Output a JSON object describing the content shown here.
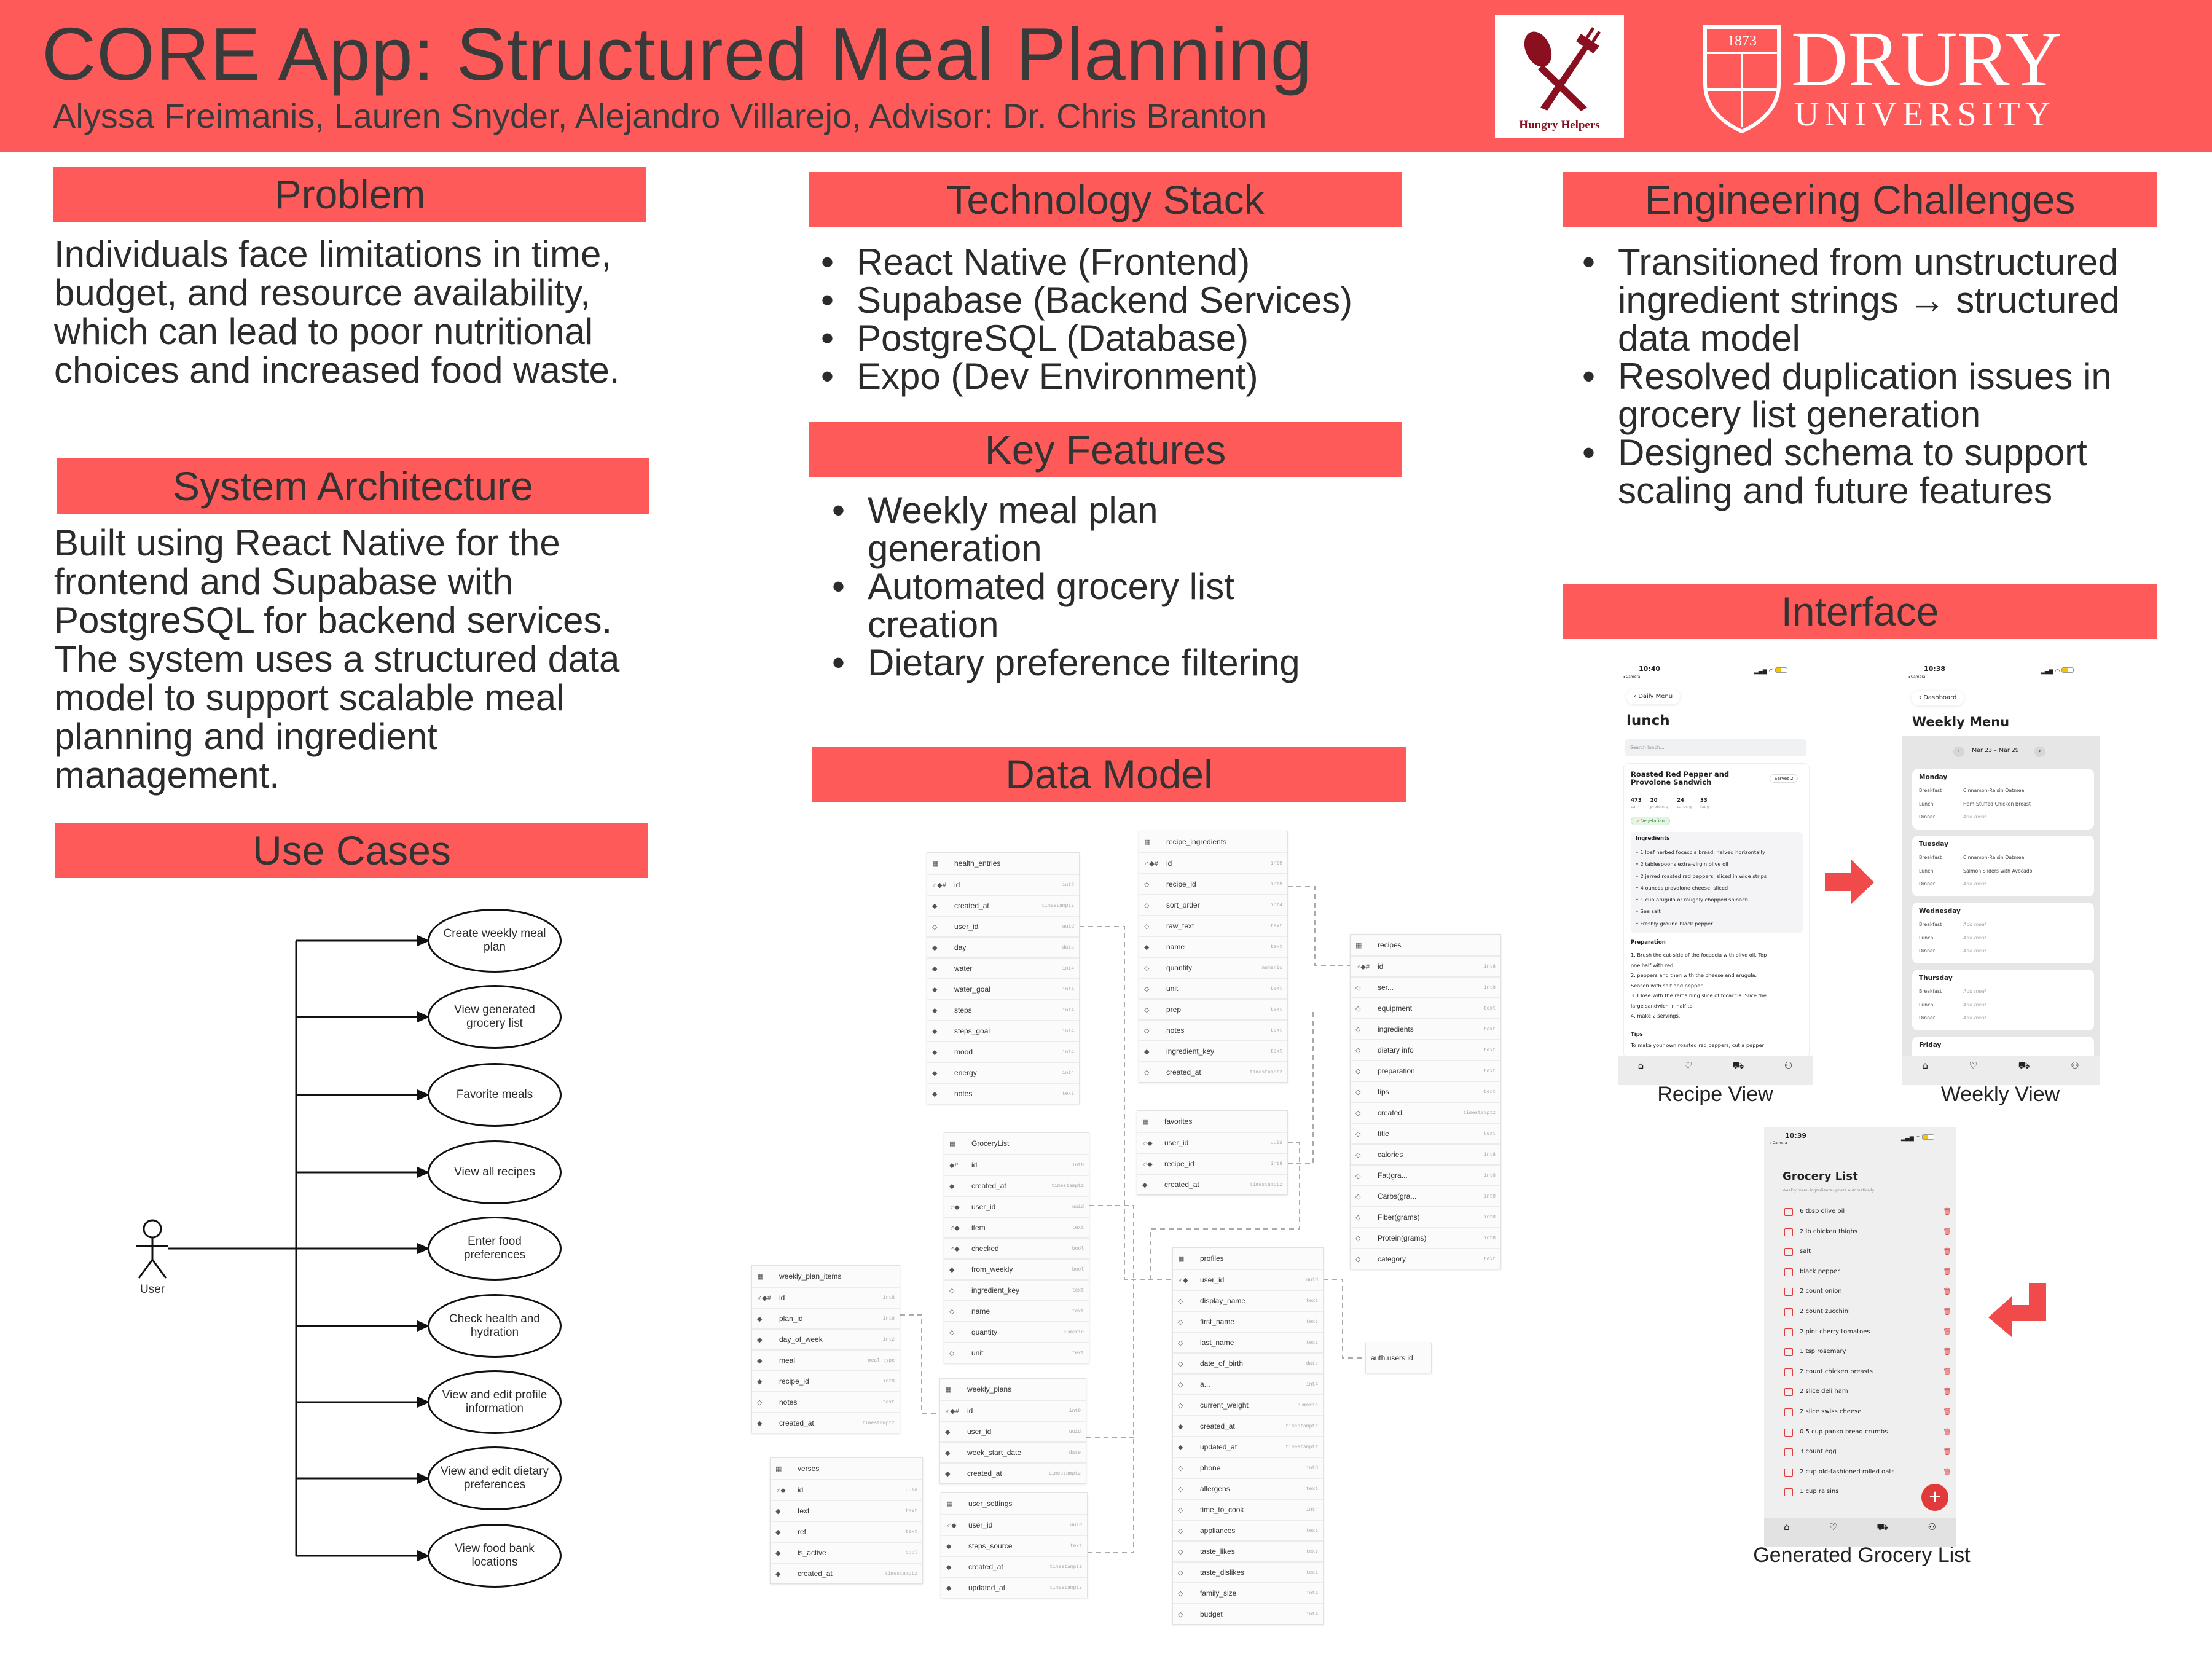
{
  "header": {
    "title": "CORE App: Structured Meal Planning",
    "authors": "Alyssa Freimanis, Lauren Snyder, Alejandro Villarejo, Advisor: Dr. Chris Branton",
    "logo_text": "Hungry Helpers",
    "university_name": "DRURY",
    "university_sub": "UNIVERSITY",
    "university_year": "1873",
    "brand_color": "#ff5a5a"
  },
  "problem": {
    "heading": "Problem",
    "body": "Individuals face limitations in time, budget, and resource availability, which can lead to poor nutritional choices and increased food waste."
  },
  "architecture": {
    "heading": "System Architecture",
    "body": "Built using React Native for the frontend and Supabase with PostgreSQL for backend services. The system uses a structured data model to support scalable meal planning and ingredient management."
  },
  "use_cases": {
    "heading": "Use Cases",
    "actor": "User",
    "cases": [
      "Create weekly meal plan",
      "View generated grocery list",
      "Favorite meals",
      "View all recipes",
      "Enter food preferences",
      "Check health and hydration",
      "View and edit profile information",
      "View and edit dietary preferences",
      "View food bank locations"
    ]
  },
  "tech_stack": {
    "heading": "Technology Stack",
    "items": [
      "React Native (Frontend)",
      "Supabase (Backend Services)",
      "PostgreSQL (Database)",
      "Expo (Dev Environment)"
    ]
  },
  "features": {
    "heading": "Key Features",
    "items": [
      "Weekly meal plan generation",
      "Automated grocery list creation",
      "Dietary preference filtering"
    ]
  },
  "challenges": {
    "heading": "Engineering Challenges",
    "items": [
      "Transitioned from unstructured ingredient strings → structured data model",
      "Resolved duplication issues in grocery list generation",
      "Designed schema to support scaling and future features"
    ]
  },
  "data_model": {
    "heading": "Data Model",
    "external_ref": "auth.users.id",
    "tables": [
      {
        "name": "health_entries",
        "fields": [
          [
            "id",
            "int8",
            "pk"
          ],
          [
            "created_at",
            "timestamptz",
            "req"
          ],
          [
            "user_id",
            "uuid",
            "opt"
          ],
          [
            "day",
            "date",
            "req"
          ],
          [
            "water",
            "int4",
            "req"
          ],
          [
            "water_goal",
            "int4",
            "req"
          ],
          [
            "steps",
            "int4",
            "req"
          ],
          [
            "steps_goal",
            "int4",
            "req"
          ],
          [
            "mood",
            "int4",
            "req"
          ],
          [
            "energy",
            "int4",
            "req"
          ],
          [
            "notes",
            "text",
            "req"
          ]
        ]
      },
      {
        "name": "recipe_ingredients",
        "fields": [
          [
            "id",
            "int8",
            "pk"
          ],
          [
            "recipe_id",
            "int8",
            "opt"
          ],
          [
            "sort_order",
            "int4",
            "opt"
          ],
          [
            "raw_text",
            "text",
            "opt"
          ],
          [
            "name",
            "text",
            "req"
          ],
          [
            "quantity",
            "numeric",
            "opt"
          ],
          [
            "unit",
            "text",
            "opt"
          ],
          [
            "prep",
            "text",
            "opt"
          ],
          [
            "notes",
            "text",
            "opt"
          ],
          [
            "ingredient_key",
            "text",
            "req"
          ],
          [
            "created_at",
            "timestamptz",
            "opt"
          ]
        ]
      },
      {
        "name": "recipes",
        "fields": [
          [
            "id",
            "int8",
            "pk"
          ],
          [
            "ser...",
            "int8",
            "opt"
          ],
          [
            "equipment",
            "text",
            "opt"
          ],
          [
            "ingredients",
            "text",
            "opt"
          ],
          [
            "dietary info",
            "text",
            "opt"
          ],
          [
            "preparation",
            "text",
            "opt"
          ],
          [
            "tips",
            "text",
            "opt"
          ],
          [
            "created",
            "timestamptz",
            "opt"
          ],
          [
            "title",
            "text",
            "opt"
          ],
          [
            "calories",
            "int8",
            "opt"
          ],
          [
            "Fat(gra...",
            "int8",
            "opt"
          ],
          [
            "Carbs(gra...",
            "int8",
            "opt"
          ],
          [
            "Fiber(grams)",
            "int8",
            "opt"
          ],
          [
            "Protein(grams)",
            "int8",
            "opt"
          ],
          [
            "category",
            "text",
            "opt"
          ]
        ]
      },
      {
        "name": "favorites",
        "fields": [
          [
            "user_id",
            "uuid",
            "pkfk"
          ],
          [
            "recipe_id",
            "int8",
            "pkfk"
          ],
          [
            "created_at",
            "timestamptz",
            "req"
          ]
        ]
      },
      {
        "name": "GroceryList",
        "fields": [
          [
            "id",
            "int8",
            "idhash"
          ],
          [
            "created_at",
            "timestamptz",
            "req"
          ],
          [
            "user_id",
            "uuid",
            "pkfk"
          ],
          [
            "item",
            "text",
            "pkfk"
          ],
          [
            "checked",
            "bool",
            "pkfk"
          ],
          [
            "from_weekly",
            "bool",
            "req"
          ],
          [
            "ingredient_key",
            "text",
            "opt"
          ],
          [
            "name",
            "text",
            "opt"
          ],
          [
            "quantity",
            "numeric",
            "opt"
          ],
          [
            "unit",
            "text",
            "opt"
          ]
        ]
      },
      {
        "name": "weekly_plan_items",
        "fields": [
          [
            "id",
            "int8",
            "pk"
          ],
          [
            "plan_id",
            "int8",
            "req"
          ],
          [
            "day_of_week",
            "int2",
            "req"
          ],
          [
            "meal",
            "meal_type",
            "req"
          ],
          [
            "recipe_id",
            "int8",
            "req"
          ],
          [
            "notes",
            "text",
            "opt"
          ],
          [
            "created_at",
            "timestamptz",
            "req"
          ]
        ]
      },
      {
        "name": "weekly_plans",
        "fields": [
          [
            "id",
            "int8",
            "pk"
          ],
          [
            "user_id",
            "uuid",
            "req"
          ],
          [
            "week_start_date",
            "date",
            "req"
          ],
          [
            "created_at",
            "timestamptz",
            "req"
          ]
        ]
      },
      {
        "name": "user_settings",
        "fields": [
          [
            "user_id",
            "uuid",
            "pkfk"
          ],
          [
            "steps_source",
            "text",
            "req"
          ],
          [
            "created_at",
            "timestamptz",
            "req"
          ],
          [
            "updated_at",
            "timestamptz",
            "req"
          ]
        ]
      },
      {
        "name": "verses",
        "fields": [
          [
            "id",
            "uuid",
            "pkfk"
          ],
          [
            "text",
            "text",
            "req"
          ],
          [
            "ref",
            "text",
            "req"
          ],
          [
            "is_active",
            "bool",
            "req"
          ],
          [
            "created_at",
            "timestamptz",
            "req"
          ]
        ]
      },
      {
        "name": "profiles",
        "fields": [
          [
            "user_id",
            "uuid",
            "pkfk"
          ],
          [
            "display_name",
            "text",
            "opt"
          ],
          [
            "first_name",
            "text",
            "opt"
          ],
          [
            "last_name",
            "text",
            "opt"
          ],
          [
            "date_of_birth",
            "date",
            "opt"
          ],
          [
            "a...",
            "int4",
            "opt"
          ],
          [
            "current_weight",
            "numeric",
            "opt"
          ],
          [
            "created_at",
            "timestamptz",
            "req"
          ],
          [
            "updated_at",
            "timestamptz",
            "req"
          ],
          [
            "phone",
            "int8",
            "opt"
          ],
          [
            "allergens",
            "text",
            "opt"
          ],
          [
            "time_to_cook",
            "int4",
            "opt"
          ],
          [
            "appliances",
            "text",
            "opt"
          ],
          [
            "taste_likes",
            "text",
            "opt"
          ],
          [
            "taste_dislikes",
            "text",
            "opt"
          ],
          [
            "family_size",
            "int4",
            "opt"
          ],
          [
            "budget",
            "int4",
            "opt"
          ]
        ]
      }
    ]
  },
  "interface": {
    "heading": "Interface",
    "recipe_view": {
      "caption": "Recipe View",
      "time": "10:40",
      "carrier_back": "◂ Camera",
      "back_label": "Daily Menu",
      "title": "lunch",
      "search_placeholder": "Search lunch...",
      "recipe_title_1": "Roasted Red Pepper and",
      "recipe_title_2": "Provolone Sandwich",
      "serves": "Serves 2",
      "macros": [
        [
          "473",
          "cal"
        ],
        [
          "20",
          "protein g"
        ],
        [
          "24",
          "carbs g"
        ],
        [
          "33",
          "fat g"
        ]
      ],
      "tag": "Vegetarian",
      "ingredients_heading": "Ingredients",
      "ingredients": [
        "1 loaf herbed focaccia bread, halved horizontally",
        "2 tablespoons extra-virgin olive oil",
        "2 jarred roasted red peppers, sliced in wide strips",
        "4 ounces provolone cheese, sliced",
        "1 cup arugula or roughly chopped spinach",
        "Sea salt",
        "Freshly ground black pepper"
      ],
      "preparation_heading": "Preparation",
      "preparation": [
        "1. Brush the cut-side of the focaccia with olive oil. Top",
        "one half with red",
        "2. peppers and then with the cheese and arugula.",
        "Season with salt and pepper.",
        "3. Close with the remaining slice of focaccia. Slice the",
        "large sandwich in half to",
        "4. make 2 servings."
      ],
      "tips_heading": "Tips",
      "tips": "To make your own roasted red peppers, cut a pepper"
    },
    "weekly_view": {
      "caption": "Weekly View",
      "time": "10:38",
      "carrier_back": "◂ Camera",
      "back_label": "Dashboard",
      "title": "Weekly Menu",
      "date_range": "Mar 23 – Mar 29",
      "days": [
        {
          "day": "Monday",
          "meals": [
            [
              "Breakfast",
              "Cinnamon-Raisin Oatmeal"
            ],
            [
              "Lunch",
              "Ham-Stuffed Chicken Breast"
            ],
            [
              "Dinner",
              "Add meal"
            ]
          ]
        },
        {
          "day": "Tuesday",
          "meals": [
            [
              "Breakfast",
              "Cinnamon-Raisin Oatmeal"
            ],
            [
              "Lunch",
              "Salmon Sliders with Avocado"
            ],
            [
              "Dinner",
              "Add meal"
            ]
          ]
        },
        {
          "day": "Wednesday",
          "meals": [
            [
              "Breakfast",
              "Add meal"
            ],
            [
              "Lunch",
              "Add meal"
            ],
            [
              "Dinner",
              "Add meal"
            ]
          ]
        },
        {
          "day": "Thursday",
          "meals": [
            [
              "Breakfast",
              "Add meal"
            ],
            [
              "Lunch",
              "Add meal"
            ],
            [
              "Dinner",
              "Add meal"
            ]
          ]
        },
        {
          "day": "Friday",
          "meals": []
        }
      ]
    },
    "grocery_view": {
      "caption": "Generated Grocery List",
      "time": "10:39",
      "carrier_back": "◂ Camera",
      "title": "Grocery List",
      "subtitle": "Weekly menu ingredients update automatically.",
      "items": [
        "6 tbsp olive oil",
        "2 lb chicken thighs",
        "salt",
        "black pepper",
        "2 count onion",
        "2 count zucchini",
        "2 pint cherry tomatoes",
        "1 tsp rosemary",
        "2 count chicken breasts",
        "2 slice deli ham",
        "2 slice swiss cheese",
        "0.5 cup panko bread crumbs",
        "3 count egg",
        "2 cup old-fashioned rolled oats",
        "1 cup raisins"
      ],
      "accent_color": "#e03a3a"
    },
    "tab_icons": [
      "home-icon",
      "heart-icon",
      "cart-icon",
      "profile-icon"
    ]
  }
}
